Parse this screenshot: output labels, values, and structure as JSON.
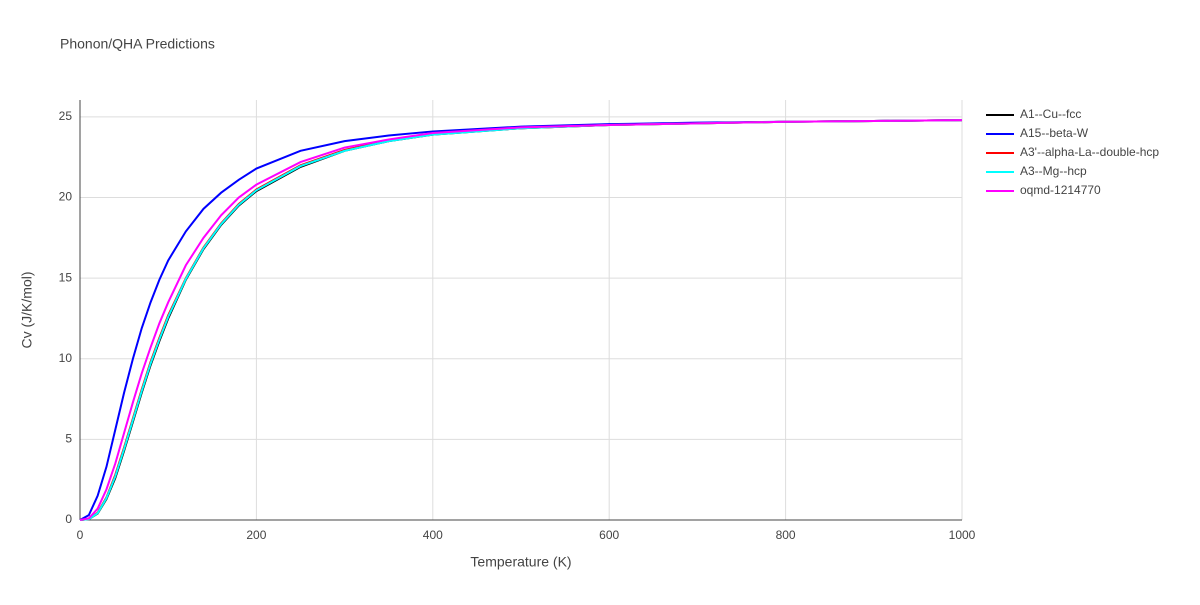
{
  "chart_data": {
    "type": "line",
    "title": "Phonon/QHA Predictions",
    "x_label": "Temperature (K)",
    "y_label": "Cv (J/K/mol)",
    "x": [
      0,
      10,
      20,
      30,
      40,
      50,
      60,
      70,
      80,
      90,
      100,
      120,
      140,
      160,
      180,
      200,
      250,
      300,
      350,
      400,
      500,
      600,
      700,
      800,
      900,
      1000
    ],
    "series": [
      {
        "name": "A1--Cu--fcc",
        "color": "#000000",
        "values": [
          0,
          0.05,
          0.4,
          1.3,
          2.6,
          4.3,
          6.1,
          7.9,
          9.6,
          11.1,
          12.5,
          14.9,
          16.8,
          18.3,
          19.5,
          20.4,
          21.9,
          22.9,
          23.5,
          23.9,
          24.3,
          24.5,
          24.6,
          24.7,
          24.75,
          24.8
        ]
      },
      {
        "name": "A15--beta-W",
        "color": "#0000ff",
        "values": [
          0,
          0.3,
          1.5,
          3.3,
          5.6,
          7.9,
          10.0,
          11.9,
          13.5,
          14.9,
          16.1,
          17.9,
          19.3,
          20.3,
          21.1,
          21.8,
          22.9,
          23.5,
          23.85,
          24.1,
          24.4,
          24.55,
          24.65,
          24.7,
          24.75,
          24.8
        ]
      },
      {
        "name": "A3'--alpha-La--double-hcp",
        "color": "#ff0000",
        "values": [
          0,
          0.06,
          0.45,
          1.4,
          2.8,
          4.5,
          6.3,
          8.1,
          9.8,
          11.3,
          12.7,
          15.0,
          16.9,
          18.4,
          19.6,
          20.5,
          22.0,
          22.95,
          23.55,
          23.95,
          24.3,
          24.5,
          24.6,
          24.7,
          24.75,
          24.8
        ]
      },
      {
        "name": "A3--Mg--hcp",
        "color": "#00ffff",
        "values": [
          0,
          0.05,
          0.42,
          1.35,
          2.7,
          4.4,
          6.2,
          8.0,
          9.7,
          11.2,
          12.6,
          14.95,
          16.85,
          18.35,
          19.55,
          20.45,
          21.95,
          22.9,
          23.5,
          23.9,
          24.3,
          24.5,
          24.6,
          24.7,
          24.75,
          24.8
        ]
      },
      {
        "name": "oqmd-1214770",
        "color": "#ff00ff",
        "values": [
          0,
          0.1,
          0.7,
          1.9,
          3.5,
          5.4,
          7.3,
          9.1,
          10.7,
          12.2,
          13.5,
          15.8,
          17.5,
          18.9,
          20.0,
          20.8,
          22.2,
          23.1,
          23.6,
          24.0,
          24.35,
          24.5,
          24.6,
          24.7,
          24.75,
          24.8
        ]
      }
    ],
    "xlim": [
      0,
      1000
    ],
    "ylim": [
      0,
      26.05
    ],
    "xticks": [
      0,
      200,
      400,
      600,
      800,
      1000
    ],
    "yticks": [
      0,
      5,
      10,
      15,
      20,
      25
    ],
    "grid": true,
    "legend": "right"
  }
}
